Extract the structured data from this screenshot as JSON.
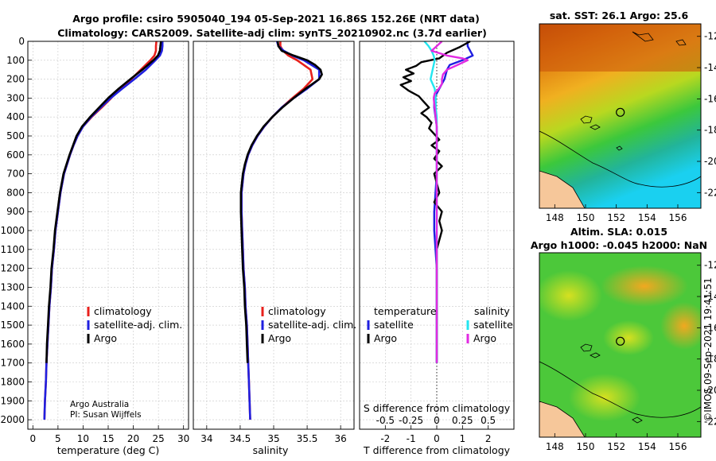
{
  "header": {
    "line1": "Argo profile: csiro 5905040_194 05-Sep-2021 16.86S 152.26E (NRT data)",
    "line2": "Climatology: CARS2009. Satellite-adj clim: synTS_20210902.nc (3.7d earlier)"
  },
  "colors": {
    "climatology": "#e8201c",
    "satellite": "#1f1fe0",
    "argo": "#000000",
    "sat_s": "#22e6f0",
    "argo_s": "#e22ae2",
    "grid": "#c8c8c8",
    "land": "#f6c79a"
  },
  "credit": {
    "line1": "Argo Australia",
    "line2": "PI: Susan Wijffels"
  },
  "timestamp": "©IMOS 09-Sep-2021 19:41:51",
  "chart_data": [
    {
      "id": "temperature",
      "type": "line",
      "xlabel": "temperature (deg C)",
      "xlim": [
        -1,
        31
      ],
      "xticks": [
        0,
        5,
        10,
        15,
        20,
        25,
        30
      ],
      "ylim": [
        0,
        2050
      ],
      "yticks": [
        0,
        100,
        200,
        300,
        400,
        500,
        600,
        700,
        800,
        900,
        1000,
        1100,
        1200,
        1300,
        1400,
        1500,
        1600,
        1700,
        1800,
        1900,
        2000
      ],
      "legend": [
        "climatology",
        "satellite-adj. clim.",
        "Argo"
      ],
      "series": [
        {
          "name": "climatology",
          "color": "climatology",
          "depth": [
            0,
            25,
            50,
            75,
            100,
            150,
            200,
            250,
            300,
            350,
            400,
            450,
            500,
            550,
            600,
            700,
            800,
            900,
            1000,
            1100,
            1200,
            1300,
            1400,
            1500,
            1600,
            1700,
            1800,
            1900,
            2000
          ],
          "values": [
            24.6,
            24.5,
            24.5,
            24.2,
            23.4,
            21.5,
            19.6,
            17.4,
            15.6,
            13.7,
            11.7,
            10.0,
            8.9,
            8.1,
            7.4,
            6.2,
            5.5,
            5.0,
            4.5,
            4.2,
            3.8,
            3.6,
            3.3,
            3.1,
            2.9,
            2.7,
            2.6,
            2.4,
            2.3
          ]
        },
        {
          "name": "satellite-adj. clim.",
          "color": "satellite",
          "depth": [
            0,
            25,
            50,
            75,
            100,
            150,
            200,
            250,
            300,
            350,
            400,
            450,
            500,
            550,
            600,
            700,
            800,
            900,
            1000,
            1100,
            1200,
            1300,
            1400,
            1500,
            1600,
            1700,
            1800,
            1900,
            2000
          ],
          "values": [
            25.8,
            25.8,
            25.7,
            25.3,
            24.4,
            22.5,
            20.2,
            17.8,
            15.5,
            13.5,
            11.6,
            10.0,
            8.9,
            8.1,
            7.4,
            6.2,
            5.5,
            5.0,
            4.5,
            4.2,
            3.8,
            3.6,
            3.3,
            3.1,
            2.9,
            2.7,
            2.6,
            2.4,
            2.3
          ]
        },
        {
          "name": "Argo",
          "color": "argo",
          "depth": [
            0,
            25,
            50,
            75,
            100,
            150,
            200,
            250,
            300,
            350,
            400,
            450,
            500,
            550,
            600,
            700,
            800,
            900,
            1000,
            1100,
            1200,
            1300,
            1400,
            1500,
            1600,
            1700
          ],
          "values": [
            25.5,
            25.4,
            25.3,
            24.9,
            24.0,
            21.8,
            19.4,
            17.1,
            15.0,
            13.2,
            11.4,
            9.8,
            8.7,
            8.0,
            7.3,
            6.1,
            5.4,
            4.9,
            4.4,
            4.1,
            3.7,
            3.5,
            3.2,
            3.0,
            2.8,
            2.7
          ]
        }
      ]
    },
    {
      "id": "salinity",
      "type": "line",
      "xlabel": "salinity",
      "xlim": [
        33.8,
        36.2
      ],
      "xticks": [
        34,
        34.5,
        35,
        35.5,
        36
      ],
      "xticklabels": [
        "34",
        "34.5",
        "35",
        "35.5",
        "36"
      ],
      "ylim": [
        0,
        2050
      ],
      "legend": [
        "climatology",
        "satellite-adj. clim.",
        "Argo"
      ],
      "series": [
        {
          "name": "climatology",
          "color": "climatology",
          "depth": [
            0,
            25,
            50,
            75,
            100,
            150,
            200,
            250,
            300,
            350,
            400,
            450,
            500,
            550,
            600,
            650,
            700,
            800,
            900,
            1000,
            1100,
            1200,
            1300,
            1400,
            1500,
            1600,
            1700,
            1800,
            1900,
            2000
          ],
          "values": [
            35.1,
            35.1,
            35.14,
            35.22,
            35.35,
            35.55,
            35.58,
            35.45,
            35.28,
            35.12,
            34.98,
            34.86,
            34.76,
            34.68,
            34.62,
            34.58,
            34.55,
            34.52,
            34.52,
            34.53,
            34.54,
            34.55,
            34.57,
            34.58,
            34.6,
            34.61,
            34.62,
            34.63,
            34.64,
            34.65
          ]
        },
        {
          "name": "satellite-adj. clim.",
          "color": "satellite",
          "depth": [
            0,
            25,
            50,
            75,
            100,
            150,
            200,
            250,
            300,
            350,
            400,
            450,
            500,
            550,
            600,
            650,
            700,
            800,
            900,
            1000,
            1100,
            1200,
            1300,
            1400,
            1500,
            1600,
            1700,
            1800,
            1900,
            2000
          ],
          "values": [
            35.05,
            35.07,
            35.15,
            35.28,
            35.45,
            35.68,
            35.68,
            35.5,
            35.3,
            35.12,
            34.98,
            34.86,
            34.76,
            34.68,
            34.62,
            34.58,
            34.55,
            34.52,
            34.52,
            34.53,
            34.54,
            34.55,
            34.57,
            34.58,
            34.6,
            34.61,
            34.62,
            34.63,
            34.64,
            34.65
          ]
        },
        {
          "name": "Argo",
          "color": "argo",
          "depth": [
            0,
            25,
            50,
            75,
            100,
            125,
            150,
            175,
            200,
            225,
            250,
            300,
            350,
            400,
            450,
            500,
            550,
            600,
            650,
            700,
            800,
            900,
            1000,
            1100,
            1200,
            1300,
            1400,
            1500,
            1600,
            1700
          ],
          "values": [
            35.06,
            35.07,
            35.12,
            35.3,
            35.5,
            35.62,
            35.7,
            35.72,
            35.68,
            35.58,
            35.48,
            35.3,
            35.13,
            34.98,
            34.85,
            34.75,
            34.67,
            34.61,
            34.57,
            34.54,
            34.51,
            34.51,
            34.52,
            34.53,
            34.54,
            34.56,
            34.57,
            34.59,
            34.6,
            34.61
          ]
        }
      ]
    },
    {
      "id": "difference",
      "type": "line",
      "xlabel": "T difference from climatology",
      "xlabel_top": "S difference from climatology",
      "xlim": [
        -3,
        3
      ],
      "xticks": [
        -2,
        -1,
        0,
        1,
        2
      ],
      "top_xticks": [
        -0.5,
        -0.25,
        0,
        0.25,
        0.5
      ],
      "top_xlim": [
        -0.75,
        0.75
      ],
      "ylim": [
        0,
        2050
      ],
      "legend_temperature_title": "temperature",
      "legend_salinity_title": "salinity",
      "legend_temperature": [
        "satellite",
        "Argo"
      ],
      "legend_salinity": [
        "satellite",
        "Argo"
      ],
      "series": [
        {
          "name": "T satellite",
          "color": "satellite",
          "depth": [
            0,
            25,
            50,
            75,
            100,
            125,
            150,
            200,
            250,
            300,
            350,
            400,
            450,
            500,
            550,
            600,
            700,
            800,
            900,
            1000,
            1200,
            1400,
            1600,
            1700
          ],
          "values": [
            1.2,
            1.2,
            1.3,
            1.4,
            1.0,
            0.5,
            0.4,
            0.3,
            0.1,
            -0.1,
            -0.1,
            -0.05,
            0,
            0,
            0,
            0,
            0,
            -0.05,
            -0.1,
            -0.1,
            0,
            0,
            0,
            0
          ]
        },
        {
          "name": "T Argo",
          "color": "argo",
          "depth": [
            0,
            30,
            60,
            90,
            110,
            130,
            150,
            170,
            190,
            210,
            230,
            260,
            290,
            320,
            350,
            380,
            400,
            430,
            460,
            490,
            520,
            550,
            580,
            620,
            660,
            700,
            750,
            800,
            850,
            900,
            950,
            1000,
            1050,
            1100,
            1200,
            1400,
            1600,
            1700
          ],
          "values": [
            1.3,
            0.9,
            0.4,
            0.1,
            -0.6,
            -0.8,
            -1.2,
            -0.9,
            -1.3,
            -1.0,
            -1.4,
            -1.1,
            -0.7,
            -0.5,
            -0.3,
            -0.6,
            -0.4,
            -0.2,
            -0.3,
            -0.1,
            0.1,
            -0.2,
            0.1,
            -0.1,
            0.2,
            -0.1,
            0,
            0.1,
            -0.1,
            0.2,
            0.1,
            0.2,
            0.1,
            0,
            0,
            0,
            0,
            0
          ]
        },
        {
          "name": "S satellite",
          "color": "sat_s",
          "depth": [
            0,
            25,
            50,
            75,
            100,
            150,
            200,
            250,
            300,
            350,
            400,
            450,
            500,
            600,
            700,
            800,
            900,
            1000,
            1200,
            1400,
            1600,
            1700
          ],
          "values": [
            -0.12,
            -0.08,
            -0.05,
            -0.03,
            -0.02,
            -0.04,
            -0.06,
            -0.02,
            -0.01,
            -0.01,
            0,
            0,
            0,
            0,
            0,
            0,
            0,
            0,
            0,
            0,
            0,
            0
          ]
        },
        {
          "name": "S Argo",
          "color": "argo_s",
          "depth": [
            0,
            25,
            50,
            75,
            90,
            100,
            125,
            150,
            175,
            200,
            225,
            250,
            275,
            300,
            350,
            400,
            450,
            500,
            550,
            600,
            700,
            800,
            900,
            1000,
            1200,
            1400,
            1600,
            1700
          ],
          "values": [
            0.05,
            0.0,
            -0.05,
            0.1,
            0.25,
            0.3,
            0.2,
            0.1,
            0.06,
            0.05,
            0.05,
            0.02,
            -0.02,
            -0.03,
            -0.02,
            -0.01,
            0,
            0,
            0,
            0,
            0,
            0,
            0,
            0,
            0,
            0,
            0,
            0
          ]
        }
      ]
    },
    {
      "id": "sst_map",
      "type": "heatmap",
      "title": "sat. SST: 26.1 Argo: 25.6",
      "xticks": [
        148,
        150,
        152,
        154,
        156
      ],
      "yticks": [
        -12,
        -14,
        -16,
        -18,
        -20,
        -22
      ],
      "xlim": [
        147,
        157.5
      ],
      "ylim": [
        -23,
        -11.2
      ],
      "float_position": [
        152.26,
        -16.86
      ]
    },
    {
      "id": "sla_map",
      "type": "heatmap",
      "title_line1": "Altim. SLA: 0.015",
      "title_line2": "Argo h1000: -0.045 h2000: NaN",
      "xticks": [
        148,
        150,
        152,
        154,
        156
      ],
      "yticks": [
        -12,
        -14,
        -16,
        -18,
        -20,
        -22
      ],
      "xlim": [
        147,
        157.5
      ],
      "ylim": [
        -23,
        -11.2
      ],
      "float_position": [
        152.26,
        -16.86
      ]
    }
  ]
}
